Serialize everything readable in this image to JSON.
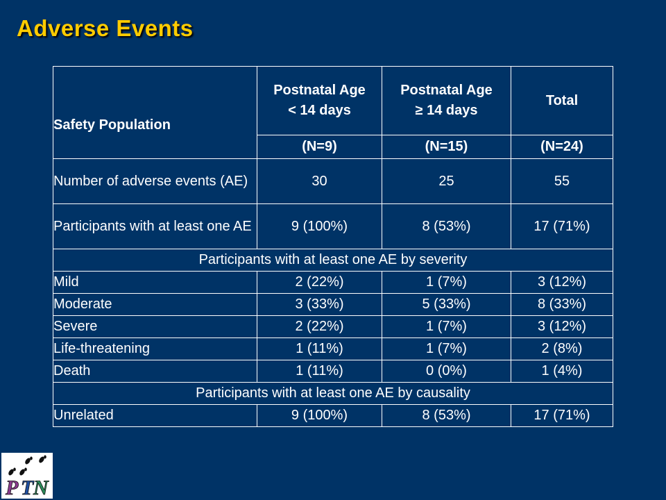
{
  "slide": {
    "title": "Adverse Events"
  },
  "table": {
    "header": {
      "label": "Safety Population",
      "col_a_line1": "Postnatal Age",
      "col_a_line2": "< 14 days",
      "col_b_line1": "Postnatal Age",
      "col_b_line2": "≥ 14 days",
      "col_c": "Total",
      "n_a": "(N=9)",
      "n_b": "(N=15)",
      "n_c": "(N=24)"
    },
    "rows": [
      {
        "label": "Number of adverse events (AE)",
        "a": "30",
        "b": "25",
        "c": "55"
      },
      {
        "label": "Participants with at least one AE",
        "a": "9 (100%)",
        "b": "8 (53%)",
        "c": "17 (71%)"
      }
    ],
    "severity_section": "Participants with at least one AE by severity",
    "severity_rows": [
      {
        "label": "Mild",
        "a": "2 (22%)",
        "b": "1 (7%)",
        "c": "3 (12%)"
      },
      {
        "label": "Moderate",
        "a": "3 (33%)",
        "b": "5 (33%)",
        "c": "8 (33%)"
      },
      {
        "label": "Severe",
        "a": "2 (22%)",
        "b": "1 (7%)",
        "c": "3 (12%)"
      },
      {
        "label": "Life-threatening",
        "a": "1 (11%)",
        "b": "1 (7%)",
        "c": "2 (8%)"
      },
      {
        "label": "Death",
        "a": "1 (11%)",
        "b": "0 (0%)",
        "c": "1 (4%)"
      }
    ],
    "causality_section": "Participants with at least one AE by causality",
    "causality_rows": [
      {
        "label": "Unrelated",
        "a": "9 (100%)",
        "b": "8 (53%)",
        "c": "17 (71%)"
      }
    ]
  },
  "logo": {
    "text": "PTN",
    "icon": "ptn-logo-icon"
  },
  "colors": {
    "background": "#003366",
    "title": "#ffcc00",
    "text": "#ffffff",
    "logo_p": "#8b3a8f",
    "logo_t": "#1f4fa0",
    "logo_n": "#2c8c5a"
  }
}
